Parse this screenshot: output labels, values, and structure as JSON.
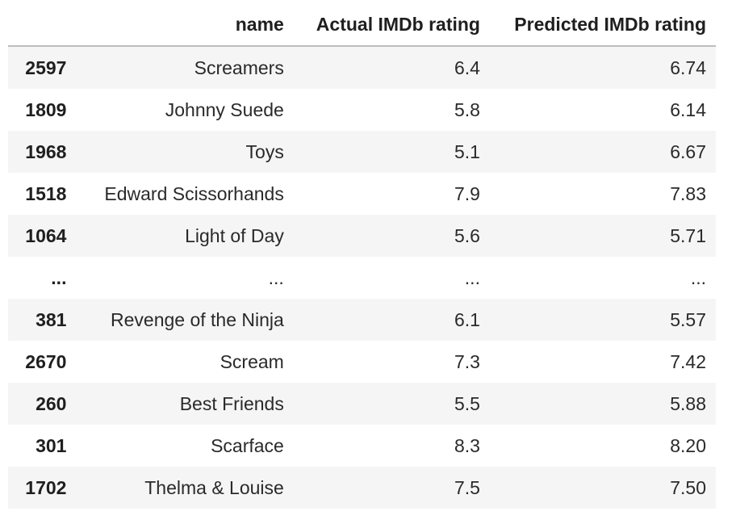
{
  "table": {
    "columns": {
      "index": "",
      "name": "name",
      "actual": "Actual IMDb rating",
      "predicted": "Predicted IMDb rating"
    },
    "rows": [
      {
        "index": "2597",
        "name": "Screamers",
        "actual": "6.4",
        "predicted": "6.74"
      },
      {
        "index": "1809",
        "name": "Johnny Suede",
        "actual": "5.8",
        "predicted": "6.14"
      },
      {
        "index": "1968",
        "name": "Toys",
        "actual": "5.1",
        "predicted": "6.67"
      },
      {
        "index": "1518",
        "name": "Edward Scissorhands",
        "actual": "7.9",
        "predicted": "7.83"
      },
      {
        "index": "1064",
        "name": "Light of Day",
        "actual": "5.6",
        "predicted": "5.71"
      },
      {
        "index": "...",
        "name": "...",
        "actual": "...",
        "predicted": "..."
      },
      {
        "index": "381",
        "name": "Revenge of the Ninja",
        "actual": "6.1",
        "predicted": "5.57"
      },
      {
        "index": "2670",
        "name": "Scream",
        "actual": "7.3",
        "predicted": "7.42"
      },
      {
        "index": "260",
        "name": "Best Friends",
        "actual": "5.5",
        "predicted": "5.88"
      },
      {
        "index": "301",
        "name": "Scarface",
        "actual": "8.3",
        "predicted": "8.20"
      },
      {
        "index": "1702",
        "name": "Thelma & Louise",
        "actual": "7.5",
        "predicted": "7.50"
      }
    ]
  }
}
